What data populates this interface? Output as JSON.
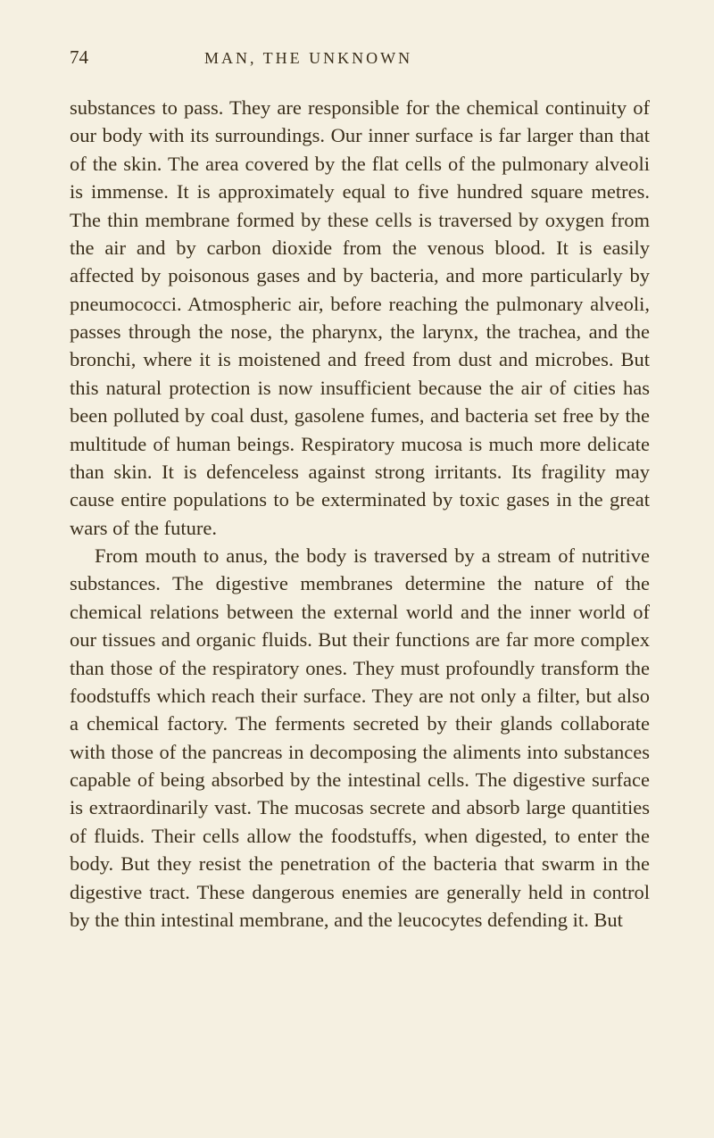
{
  "page": {
    "number": "74",
    "header": "MAN, THE UNKNOWN"
  },
  "paragraphs": {
    "p1": "substances to pass. They are responsible for the chemical continuity of our body with its surroundings. Our inner surface is far larger than that of the skin. The area covered by the flat cells of the pulmonary alveoli is immense. It is approximately equal to five hundred square metres. The thin membrane formed by these cells is traversed by oxygen from the air and by carbon dioxide from the venous blood. It is easily affected by poisonous gases and by bacteria, and more particularly by pneumococci. Atmospheric air, before reaching the pulmonary alveoli, passes through the nose, the pharynx, the larynx, the trachea, and the bronchi, where it is moistened and freed from dust and microbes. But this natural protection is now insufficient because the air of cities has been polluted by coal dust, gasolene fumes, and bacteria set free by the multitude of human beings. Respiratory mucosa is much more delicate than skin. It is defenceless against strong irritants. Its fragility may cause entire populations to be exterminated by toxic gases in the great wars of the future.",
    "p2": "From mouth to anus, the body is traversed by a stream of nutritive substances. The digestive membranes determine the nature of the chemical relations between the external world and the inner world of our tissues and organic fluids. But their functions are far more complex than those of the respiratory ones. They must profoundly transform the foodstuffs which reach their surface. They are not only a filter, but also a chemical factory. The ferments secreted by their glands collaborate with those of the pancreas in decomposing the aliments into substances capable of being absorbed by the intestinal cells. The digestive surface is extraordinarily vast. The mucosas secrete and absorb large quantities of fluids. Their cells allow the foodstuffs, when digested, to enter the body. But they resist the penetration of the bacteria that swarm in the digestive tract. These dangerous enemies are generally held in control by the thin intestinal membrane, and the leucocytes defending it. But"
  },
  "styling": {
    "background_color": "#f5f0e1",
    "text_color": "#3a2e1a",
    "body_fontsize": 22.5,
    "line_height": 1.395,
    "page_num_fontsize": 21,
    "header_fontsize": 18,
    "header_letter_spacing": 3
  }
}
